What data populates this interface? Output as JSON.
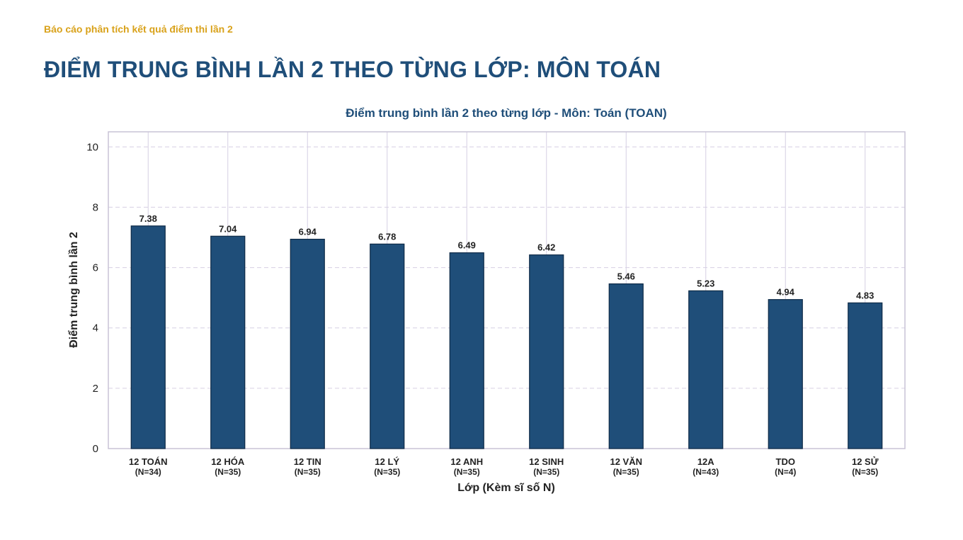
{
  "header": {
    "report_label": "Báo cáo phân tích kết quả điểm thi lần 2",
    "page_title": "ĐIỂM TRUNG BÌNH LẦN 2 THEO TỪNG LỚP: MÔN TOÁN"
  },
  "colors": {
    "accent_gold": "#d9a21b",
    "title_blue": "#1f4e79",
    "bar_fill": "#1f4e79",
    "bar_stroke": "#0e2a47"
  },
  "chart_data": {
    "type": "bar",
    "title": "Điểm trung bình lần 2 theo từng lớp - Môn: Toán (TOAN)",
    "xlabel": "Lớp (Kèm sĩ số N)",
    "ylabel": "Điểm trung bình lần 2",
    "ylim": [
      0,
      10.5
    ],
    "yticks": [
      "0",
      "2",
      "4",
      "6",
      "8",
      "10"
    ],
    "grid": true,
    "categories": [
      "12 TOÁN",
      "12 HÓA",
      "12 TIN",
      "12 LÝ",
      "12 ANH",
      "12 SINH",
      "12 VĂN",
      "12A",
      "TDO",
      "12 SỬ"
    ],
    "category_counts": [
      "(N=34)",
      "(N=35)",
      "(N=35)",
      "(N=35)",
      "(N=35)",
      "(N=35)",
      "(N=35)",
      "(N=43)",
      "(N=4)",
      "(N=35)"
    ],
    "values": [
      7.38,
      7.04,
      6.94,
      6.78,
      6.49,
      6.42,
      5.46,
      5.23,
      4.94,
      4.83
    ],
    "value_labels": [
      "7.38",
      "7.04",
      "6.94",
      "6.78",
      "6.49",
      "6.42",
      "5.46",
      "5.23",
      "4.94",
      "4.83"
    ]
  }
}
